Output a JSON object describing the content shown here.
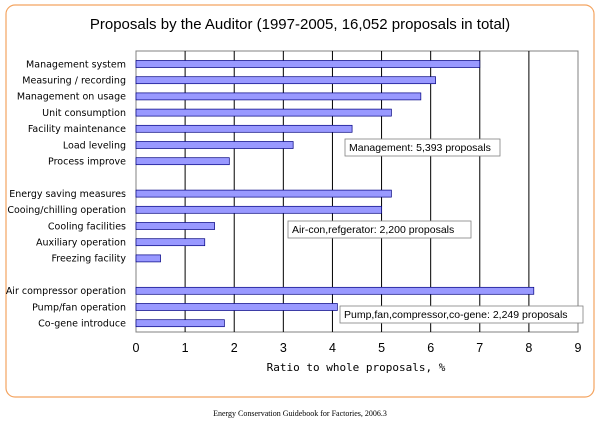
{
  "chart_data": {
    "type": "bar",
    "orientation": "horizontal",
    "title": "Proposals by the Auditor (1997-2005, 16,052 proposals in total)",
    "xlabel": "Ratio to whole proposals, %",
    "ylabel": "",
    "xlim": [
      0,
      9
    ],
    "xticks": [
      "0",
      "1",
      "2",
      "3",
      "4",
      "5",
      "6",
      "7",
      "8",
      "9"
    ],
    "grid": "vertical",
    "bar_color": "#9999ff",
    "groups": [
      {
        "annotation": "Management: 5,393 proposals",
        "categories": [
          "Management system",
          "Measuring / recording",
          "Management on usage",
          "Unit consumption",
          "Facility maintenance",
          "Load leveling",
          "Process improve"
        ],
        "values": [
          7.0,
          6.1,
          5.8,
          5.2,
          4.4,
          3.2,
          1.9
        ]
      },
      {
        "annotation": "Air-con,refgerator: 2,200 proposals",
        "categories": [
          "Energy saving measures",
          "Cooing/chilling operation",
          "Cooling facilities",
          "Auxiliary operation",
          "Freezing facility"
        ],
        "values": [
          5.2,
          5.0,
          1.6,
          1.4,
          0.5
        ]
      },
      {
        "annotation": "Pump,fan,compressor,co-gene: 2,249 proposals",
        "categories": [
          "Air compressor operation",
          "Pump/fan operation",
          "Co-gene introduce"
        ],
        "values": [
          8.1,
          4.1,
          1.8
        ]
      }
    ],
    "source": "Energy Conservation Guidebook for Factories, 2006.3"
  }
}
